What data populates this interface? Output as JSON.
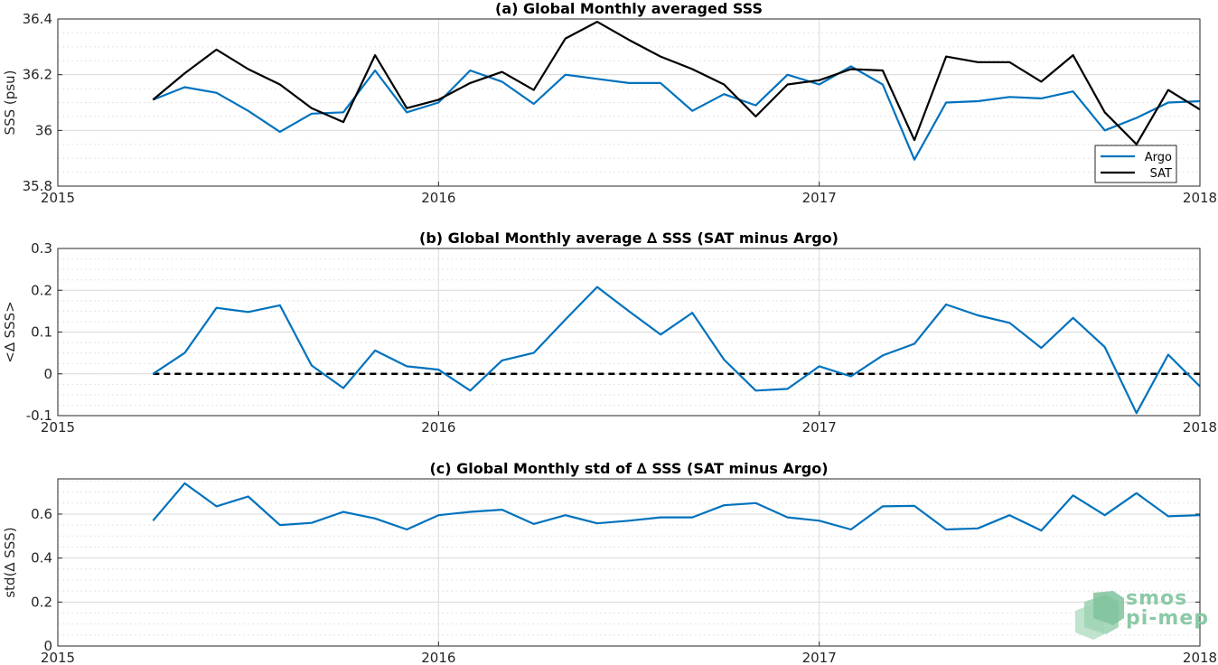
{
  "colors": {
    "argo": "#0072BD",
    "sat": "#000000",
    "grid": "#e0e0e0",
    "zero_line": "#000000",
    "logo": "#8cc9a6"
  },
  "logo": {
    "line1": "smos",
    "line2": "pi-mep"
  },
  "chart_data": [
    {
      "type": "line",
      "title": "(a) Global Monthly averaged SSS",
      "ylabel": "SSS (psu)",
      "xlim": [
        2015,
        2018
      ],
      "ylim": [
        35.8,
        36.4
      ],
      "x_ticks": [
        "2015",
        "2016",
        "2017",
        "2018"
      ],
      "y_ticks": [
        "35.8",
        "36",
        "36.2",
        "36.4"
      ],
      "grid": true,
      "legend": "bottom-right",
      "x": [
        "2015-04",
        "2015-05",
        "2015-06",
        "2015-07",
        "2015-08",
        "2015-09",
        "2015-10",
        "2015-11",
        "2015-12",
        "2016-01",
        "2016-02",
        "2016-03",
        "2016-04",
        "2016-05",
        "2016-06",
        "2016-07",
        "2016-08",
        "2016-09",
        "2016-10",
        "2016-11",
        "2016-12",
        "2017-01",
        "2017-02",
        "2017-03",
        "2017-04",
        "2017-05",
        "2017-06",
        "2017-07",
        "2017-08",
        "2017-09",
        "2017-10",
        "2017-11",
        "2017-12",
        "2018-01"
      ],
      "series": [
        {
          "name": "Argo",
          "color": "#0072BD",
          "values": [
            36.11,
            36.155,
            36.135,
            36.07,
            35.995,
            36.06,
            36.065,
            36.215,
            36.065,
            36.1,
            36.215,
            36.175,
            36.095,
            36.2,
            36.185,
            36.17,
            36.17,
            36.07,
            36.13,
            36.09,
            36.2,
            36.165,
            36.23,
            36.165,
            35.895,
            36.1,
            36.105,
            36.12,
            36.115,
            36.14,
            36.0,
            36.045,
            36.1,
            36.105
          ]
        },
        {
          "name": "SAT",
          "color": "#000000",
          "values": [
            36.11,
            36.205,
            36.29,
            36.22,
            36.165,
            36.08,
            36.03,
            36.27,
            36.08,
            36.11,
            36.17,
            36.21,
            36.145,
            36.33,
            36.39,
            36.325,
            36.265,
            36.22,
            36.165,
            36.05,
            36.165,
            36.18,
            36.22,
            36.215,
            35.965,
            36.265,
            36.245,
            36.245,
            36.175,
            36.27,
            36.065,
            35.95,
            36.145,
            36.075
          ]
        }
      ]
    },
    {
      "type": "line",
      "title": "(b) Global Monthly average ∆ SSS (SAT minus Argo)",
      "ylabel": "<∆ SSS>",
      "xlim": [
        2015,
        2018
      ],
      "ylim": [
        -0.1,
        0.3
      ],
      "x_ticks": [
        "2015",
        "2016",
        "2017",
        "2018"
      ],
      "y_ticks": [
        "-0.1",
        "0",
        "0.1",
        "0.2",
        "0.3"
      ],
      "grid": true,
      "reference_line": {
        "y": 0,
        "style": "dashed",
        "color": "#000000"
      },
      "x": [
        "2015-04",
        "2015-05",
        "2015-06",
        "2015-07",
        "2015-08",
        "2015-09",
        "2015-10",
        "2015-11",
        "2015-12",
        "2016-01",
        "2016-02",
        "2016-03",
        "2016-04",
        "2016-05",
        "2016-06",
        "2016-07",
        "2016-08",
        "2016-09",
        "2016-10",
        "2016-11",
        "2016-12",
        "2017-01",
        "2017-02",
        "2017-03",
        "2017-04",
        "2017-05",
        "2017-06",
        "2017-07",
        "2017-08",
        "2017-09",
        "2017-10",
        "2017-11",
        "2017-12",
        "2018-01"
      ],
      "series": [
        {
          "name": "",
          "color": "#0072BD",
          "values": [
            0.0,
            0.05,
            0.158,
            0.148,
            0.164,
            0.02,
            -0.034,
            0.056,
            0.018,
            0.01,
            -0.04,
            0.032,
            0.05,
            0.13,
            0.208,
            0.15,
            0.094,
            0.146,
            0.034,
            -0.04,
            -0.036,
            0.018,
            -0.006,
            0.044,
            0.072,
            0.166,
            0.14,
            0.122,
            0.062,
            0.134,
            0.064,
            -0.094,
            0.046,
            -0.03
          ]
        }
      ]
    },
    {
      "type": "line",
      "title": "(c) Global Monthly std of ∆ SSS (SAT minus Argo)",
      "ylabel": "std(∆ SSS)",
      "xlim": [
        2015,
        2018
      ],
      "ylim": [
        0,
        0.76
      ],
      "x_ticks": [
        "2015",
        "2016",
        "2017",
        "2018"
      ],
      "y_ticks": [
        "0",
        "0.2",
        "0.4",
        "0.6"
      ],
      "grid": true,
      "x": [
        "2015-04",
        "2015-05",
        "2015-06",
        "2015-07",
        "2015-08",
        "2015-09",
        "2015-10",
        "2015-11",
        "2015-12",
        "2016-01",
        "2016-02",
        "2016-03",
        "2016-04",
        "2016-05",
        "2016-06",
        "2016-07",
        "2016-08",
        "2016-09",
        "2016-10",
        "2016-11",
        "2016-12",
        "2017-01",
        "2017-02",
        "2017-03",
        "2017-04",
        "2017-05",
        "2017-06",
        "2017-07",
        "2017-08",
        "2017-09",
        "2017-10",
        "2017-11",
        "2017-12",
        "2018-01"
      ],
      "series": [
        {
          "name": "",
          "color": "#0072BD",
          "values": [
            0.57,
            0.74,
            0.635,
            0.68,
            0.55,
            0.56,
            0.61,
            0.58,
            0.53,
            0.595,
            0.61,
            0.62,
            0.555,
            0.595,
            0.558,
            0.57,
            0.585,
            0.585,
            0.64,
            0.65,
            0.585,
            0.57,
            0.53,
            0.635,
            0.637,
            0.53,
            0.535,
            0.595,
            0.525,
            0.685,
            0.595,
            0.695,
            0.59,
            0.595
          ]
        }
      ]
    }
  ]
}
